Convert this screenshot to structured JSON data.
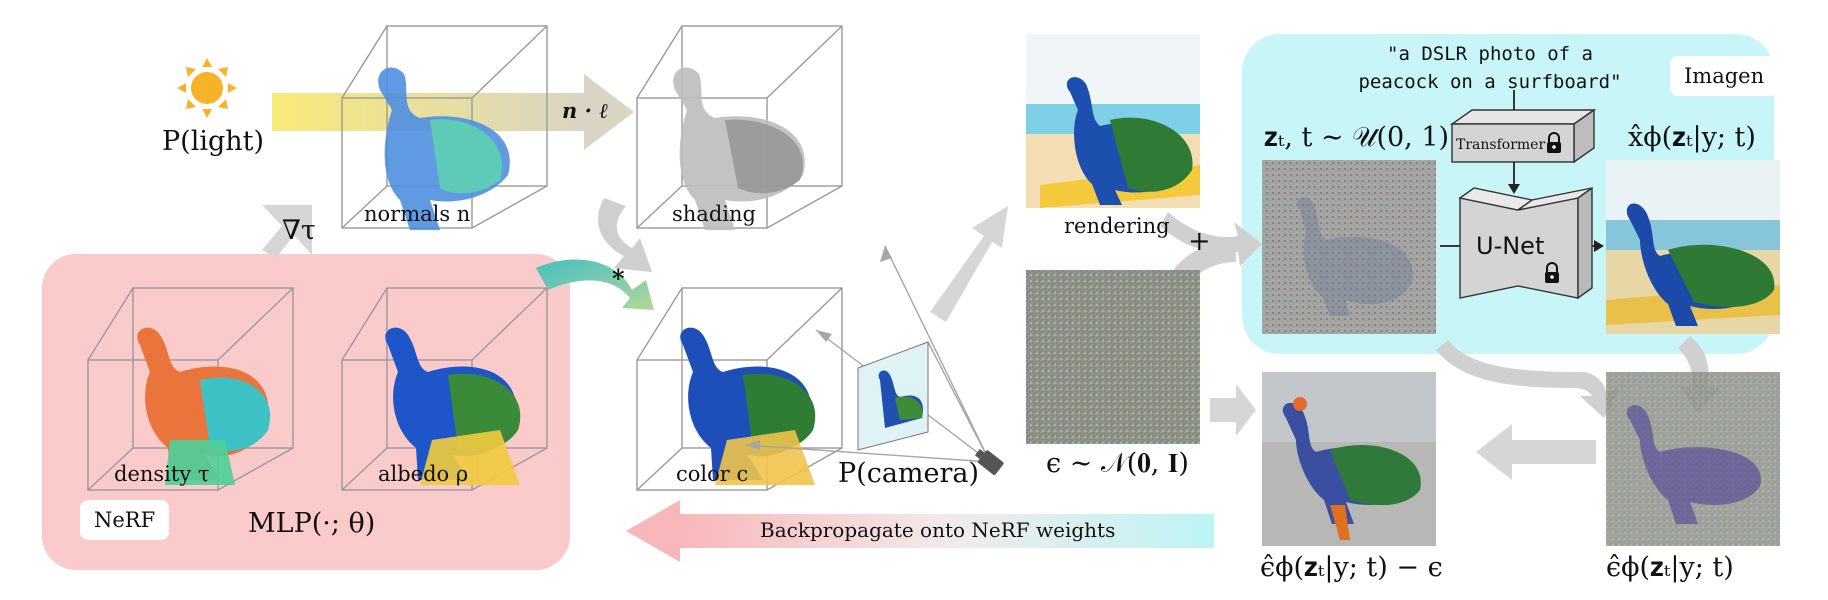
{
  "light": {
    "label": "P(light)"
  },
  "op": {
    "dot": "n · ℓ",
    "grad": "∇τ",
    "mult": "*",
    "plus": "+"
  },
  "cubes": {
    "normals": "normals n",
    "shading": "shading",
    "density": "density τ",
    "albedo": "albedo ρ",
    "color": "color c"
  },
  "nerf": {
    "tag": "NeRF",
    "mlp": "MLP(·; θ)"
  },
  "camera": {
    "label": "P(camera)"
  },
  "rendering": {
    "label": "rendering"
  },
  "noise": {
    "label": "ϵ ∼ 𝒩(𝟎, 𝐈)"
  },
  "imagen": {
    "tag": "Imagen",
    "prompt_line1": "\"a DSLR photo of a",
    "prompt_line2": "peacock on a surfboard\"",
    "zt_label": "𝐳ₜ, t ∼ 𝒰(0, 1)",
    "transformer": "Transformer",
    "unet": "U-Net",
    "xhat_label": "x̂ϕ(𝐳ₜ|y; t)"
  },
  "eps_hat_label": "ϵ̂ϕ(𝐳ₜ|y; t)",
  "diff_label": "ϵ̂ϕ(𝐳ₜ|y; t) − ϵ",
  "backprop": "Backpropagate onto NeRF weights",
  "colors": {
    "nerf_bg": "#fbcaca",
    "imagen_bg": "#c8f6f8",
    "arrow_gray": "#d6d6d6",
    "sun": "#f6b32a"
  }
}
